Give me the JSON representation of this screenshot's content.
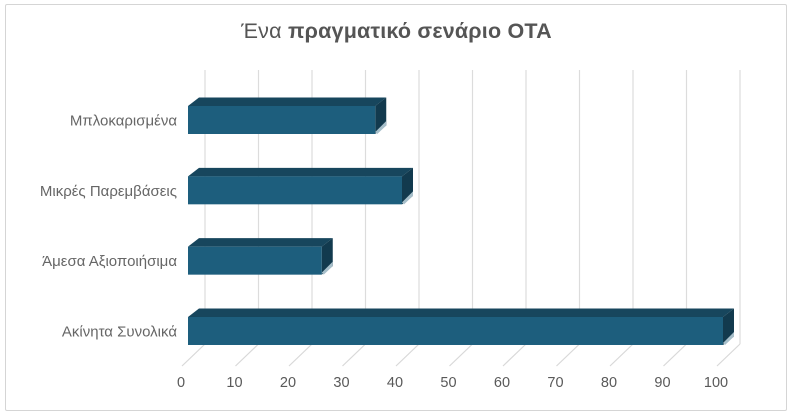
{
  "title": {
    "regular": "Ένα ",
    "bold": "πραγματικό σενάριο ΟΤΑ"
  },
  "chart_data": {
    "type": "bar",
    "orientation": "horizontal",
    "style": "3d",
    "title": "Ένα πραγματικό σενάριο ΟΤΑ",
    "categories": [
      "Μπλοκαρισμένα",
      "Μικρές Παρεμβάσεις",
      "Άμεσα Αξιοποιήσιμα",
      "Ακίνητα Συνολικά"
    ],
    "values": [
      35,
      40,
      25,
      100
    ],
    "xlabel": "",
    "ylabel": "",
    "xlim": [
      0,
      100
    ],
    "x_ticks": [
      0,
      10,
      20,
      30,
      40,
      50,
      60,
      70,
      80,
      90,
      100
    ],
    "grid": "vertical",
    "legend": false,
    "colors": {
      "bar_front": "#1d5e7d",
      "bar_top": "#17465d",
      "bar_side": "#123a4e",
      "bar_bevel": "#a7bfca",
      "gridline": "#dcdcdc",
      "floor_diagonal": "#d8d8d8",
      "tick_label": "#595959",
      "category_label": "#666666",
      "title": "#555555",
      "frame_border": "#d5d5d5",
      "background": "#ffffff"
    }
  }
}
